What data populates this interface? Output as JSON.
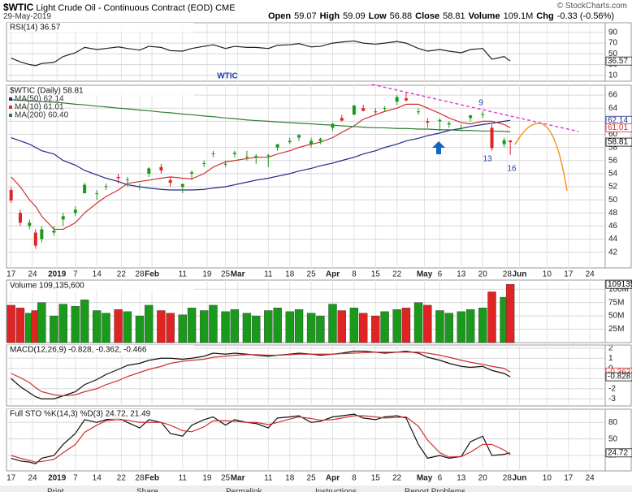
{
  "header": {
    "symbol": "$WTIC",
    "name": "Light Crude Oil - Continuous Contract (EOD) CME",
    "date": "29-May-2019",
    "copyright": "© StockCharts.com",
    "quote": [
      {
        "label": "Open",
        "value": 59.07
      },
      {
        "label": "High",
        "value": 59.09
      },
      {
        "label": "Low",
        "value": 56.88
      },
      {
        "label": "Close",
        "value": 58.81
      },
      {
        "label": "Volume",
        "value": "109.1M"
      },
      {
        "label": "Chg",
        "value": "-0.33 (-0.56%)"
      }
    ]
  },
  "footer": [
    "Print",
    "Share",
    "Permalink",
    "Instructions",
    "Report Problems"
  ],
  "chart_data": [
    {
      "type": "candlestick",
      "title": "$WTIC (Daily) 58.81",
      "x": [
        0,
        3,
        6,
        8,
        10,
        14,
        17,
        21,
        24,
        28,
        31,
        35,
        38,
        42,
        45,
        49,
        52,
        56,
        59,
        63,
        66,
        70,
        73,
        77,
        80,
        84,
        87,
        91,
        94,
        98,
        101,
        105,
        108,
        112,
        115,
        119,
        122,
        126,
        129,
        133,
        136,
        140,
        143,
        147,
        150,
        154,
        157,
        161,
        163
      ],
      "open": [
        51.5,
        48,
        46,
        45,
        44,
        45,
        47,
        48,
        51,
        51,
        52,
        53.5,
        53,
        52,
        54,
        55,
        53,
        52,
        54,
        55.5,
        57,
        55.5,
        57,
        56.5,
        56.5,
        56.8,
        58,
        58.8,
        59.5,
        58.5,
        59,
        61,
        62.5,
        63,
        64,
        63.5,
        64,
        65,
        65.5,
        63.5,
        62,
        62,
        61.5,
        61,
        62.5,
        63,
        61,
        58.5,
        59.07
      ],
      "high": [
        52,
        48.5,
        47,
        45.5,
        46,
        46,
        48,
        49,
        52.6,
        51.5,
        52.5,
        54,
        53.5,
        52.5,
        55,
        55.5,
        53.5,
        52.5,
        54.5,
        56,
        57.5,
        56,
        57.5,
        57.5,
        57,
        57,
        58.5,
        59.5,
        60,
        59.5,
        59.5,
        61.8,
        63,
        64.5,
        64.5,
        64,
        64.3,
        66,
        66.5,
        64,
        62.5,
        62.5,
        62,
        61.5,
        63,
        63.5,
        61.5,
        59.5,
        59.09
      ],
      "low": [
        49.5,
        46,
        45.5,
        42.5,
        43.5,
        44.5,
        46,
        47.5,
        51,
        50,
        51.5,
        52.5,
        52,
        51.5,
        53.5,
        54,
        52,
        51,
        53,
        55,
        56.5,
        55,
        56.5,
        56,
        55.5,
        55,
        57.5,
        58.5,
        59,
        58,
        58.5,
        60.5,
        62,
        63,
        63.5,
        63,
        63.5,
        64.5,
        65,
        63,
        61,
        60.5,
        61,
        60.5,
        62,
        62.5,
        57.5,
        58,
        56.88
      ],
      "close": [
        49.9,
        46.5,
        46.5,
        43,
        45.5,
        45.3,
        47.5,
        48.5,
        52.3,
        51,
        52.1,
        53.3,
        53.1,
        52,
        54.8,
        54.5,
        52.6,
        52.4,
        54.2,
        55.6,
        57.1,
        55.5,
        57.2,
        56.6,
        56.7,
        56.8,
        58.5,
        59,
        59.9,
        59,
        59.3,
        61.6,
        62.1,
        64.4,
        63.6,
        63.4,
        64,
        65.7,
        65.2,
        63.5,
        61.8,
        62.2,
        61.7,
        61,
        62.9,
        63.1,
        57.9,
        59.1,
        58.81
      ],
      "up_color": "#1a9a1a",
      "down_color": "#e02424",
      "series": [
        {
          "name": "MA(50) 62.14",
          "color": "#1f2a8a",
          "values": [
            59.5,
            59,
            58.5,
            58,
            57.5,
            57,
            56,
            55.3,
            54.5,
            53.8,
            53.3,
            52.8,
            52.3,
            52,
            51.8,
            51.6,
            51.5,
            51.5,
            51.5,
            51.6,
            51.8,
            52,
            52.3,
            52.7,
            53,
            53.3,
            53.6,
            54,
            54.4,
            54.8,
            55.2,
            55.6,
            56,
            56.5,
            57,
            57.5,
            58,
            58.5,
            59,
            59.4,
            59.8,
            60.2,
            60.6,
            60.9,
            61.2,
            61.5,
            61.7,
            62,
            62.14
          ]
        },
        {
          "name": "MA(10) 61.01",
          "color": "#d03030",
          "values": [
            53.5,
            52,
            50,
            49,
            47.5,
            45.5,
            45.5,
            46.5,
            48,
            49.5,
            50.5,
            51.5,
            52.5,
            52.8,
            53,
            53.3,
            53.5,
            53.3,
            53.2,
            54,
            55,
            55.8,
            56,
            56.3,
            56.5,
            56.5,
            57,
            57.5,
            58,
            58.5,
            58.8,
            59.5,
            60.3,
            61.3,
            62.3,
            63,
            63.5,
            64,
            64.6,
            64.6,
            64,
            63.2,
            62.5,
            61.8,
            61.6,
            62,
            62,
            61.5,
            61.01
          ]
        },
        {
          "name": "MA(200) 60.40",
          "color": "#2e7d32",
          "values": [
            65.3,
            65.2,
            65.1,
            65.05,
            65,
            64.9,
            64.8,
            64.6,
            64.5,
            64.3,
            64.2,
            64,
            63.9,
            63.7,
            63.6,
            63.4,
            63.3,
            63.1,
            63,
            62.8,
            62.7,
            62.5,
            62.4,
            62.2,
            62.1,
            62,
            61.9,
            61.8,
            61.7,
            61.6,
            61.5,
            61.4,
            61.3,
            61.2,
            61.1,
            61,
            61,
            60.9,
            60.9,
            60.8,
            60.8,
            60.7,
            60.7,
            60.6,
            60.6,
            60.5,
            60.5,
            60.45,
            60.4
          ]
        }
      ],
      "xlim": [
        -1.5,
        194
      ],
      "xticks": [
        {
          "value": 0,
          "label": "17"
        },
        {
          "value": 7,
          "label": "24"
        },
        {
          "value": 15,
          "label": "2019"
        },
        {
          "value": 21,
          "label": "7"
        },
        {
          "value": 28,
          "label": "14"
        },
        {
          "value": 36,
          "label": "22"
        },
        {
          "value": 42,
          "label": "28"
        },
        {
          "value": 46,
          "label": "Feb"
        },
        {
          "value": 56,
          "label": "11"
        },
        {
          "value": 64,
          "label": "19"
        },
        {
          "value": 70,
          "label": "25"
        },
        {
          "value": 74,
          "label": "Mar"
        },
        {
          "value": 84,
          "label": "11"
        },
        {
          "value": 91,
          "label": "18"
        },
        {
          "value": 98,
          "label": "25"
        },
        {
          "value": 105,
          "label": "Apr"
        },
        {
          "value": 112,
          "label": "8"
        },
        {
          "value": 119,
          "label": "15"
        },
        {
          "value": 126,
          "label": "22"
        },
        {
          "value": 135,
          "label": "May"
        },
        {
          "value": 140,
          "label": "6"
        },
        {
          "value": 147,
          "label": "13"
        },
        {
          "value": 154,
          "label": "20"
        },
        {
          "value": 162,
          "label": "28"
        },
        {
          "value": 166,
          "label": "Jun"
        },
        {
          "value": 175,
          "label": "10"
        },
        {
          "value": 182,
          "label": "17"
        },
        {
          "value": 189,
          "label": "24"
        }
      ],
      "ylim": [
        39.6,
        67.5
      ],
      "yticks": [
        42,
        44,
        46,
        48,
        50,
        52,
        54,
        56,
        58,
        60,
        62,
        64,
        66
      ],
      "grid": true,
      "annotations": [
        "WTIC",
        "9",
        "13",
        "16"
      ]
    },
    {
      "type": "line",
      "title": "RSI(14) 36.57",
      "color": "#222222",
      "values": [
        42,
        35,
        30,
        28,
        32,
        34,
        45,
        52,
        62,
        58,
        60,
        63,
        60,
        57,
        64,
        62,
        56,
        55,
        60,
        64,
        67,
        60,
        64,
        62,
        62,
        60,
        66,
        67,
        69,
        63,
        64,
        70,
        72,
        74,
        70,
        68,
        70,
        73,
        70,
        60,
        55,
        58,
        55,
        52,
        58,
        60,
        40,
        45,
        36.57
      ],
      "ylim": [
        -1,
        108
      ],
      "yticks": [
        10,
        30,
        50,
        70,
        90
      ],
      "grid": true
    },
    {
      "type": "bar",
      "title": "Volume 109,135,600",
      "values": [
        70000000,
        65000000,
        55000000,
        60000000,
        75000000,
        50000000,
        72000000,
        68000000,
        80000000,
        60000000,
        55000000,
        62000000,
        58000000,
        50000000,
        70000000,
        60000000,
        55000000,
        52000000,
        65000000,
        60000000,
        70000000,
        58000000,
        62000000,
        55000000,
        50000000,
        60000000,
        65000000,
        58000000,
        62000000,
        55000000,
        50000000,
        72000000,
        60000000,
        65000000,
        55000000,
        50000000,
        58000000,
        62000000,
        65000000,
        75000000,
        70000000,
        60000000,
        55000000,
        58000000,
        62000000,
        65000000,
        95000000,
        85000000,
        109135600
      ],
      "ylim": [
        0,
        117000000
      ],
      "yticks": [
        {
          "value": 25000000,
          "label": "25M"
        },
        {
          "value": 50000000,
          "label": "50M"
        },
        {
          "value": 75000000,
          "label": "75M"
        },
        {
          "value": 100000000,
          "label": "100M"
        }
      ],
      "grid": true
    },
    {
      "type": "line",
      "title": "MACD(12,26,9) -0.828, -0.362, -0.466",
      "series": [
        {
          "color": "#111111",
          "values": [
            -1,
            -1.8,
            -2.4,
            -2.8,
            -3,
            -3,
            -2.7,
            -2.3,
            -1.6,
            -1.1,
            -0.6,
            -0.1,
            0.3,
            0.5,
            0.8,
            1,
            1,
            0.9,
            1,
            1.2,
            1.5,
            1.4,
            1.5,
            1.4,
            1.3,
            1.2,
            1.3,
            1.4,
            1.5,
            1.4,
            1.3,
            1.4,
            1.5,
            1.7,
            1.7,
            1.6,
            1.5,
            1.6,
            1.7,
            1.5,
            1.1,
            0.8,
            0.5,
            0.2,
            0.1,
            0.2,
            -0.2,
            -0.5,
            -0.828
          ]
        },
        {
          "color": "#d03030",
          "values": [
            -0.5,
            -0.9,
            -1.4,
            -1.9,
            -2.3,
            -2.6,
            -2.7,
            -2.6,
            -2.3,
            -2,
            -1.6,
            -1.2,
            -0.8,
            -0.4,
            -0.1,
            0.2,
            0.5,
            0.7,
            0.8,
            0.9,
            1.1,
            1.2,
            1.3,
            1.35,
            1.35,
            1.3,
            1.3,
            1.35,
            1.4,
            1.4,
            1.4,
            1.4,
            1.45,
            1.5,
            1.55,
            1.6,
            1.6,
            1.6,
            1.6,
            1.6,
            1.5,
            1.3,
            1.1,
            0.8,
            0.6,
            0.4,
            0.2,
            0,
            -0.362
          ]
        }
      ],
      "ylim": [
        -3.7,
        2.3
      ],
      "yticks": [
        -3,
        -2,
        -1,
        0,
        1,
        2
      ],
      "grid": true
    },
    {
      "type": "line",
      "title": "Full STO %K(14,3) %D(3) 24.72, 21.49",
      "series": [
        {
          "color": "#111111",
          "values": [
            15,
            10,
            8,
            5,
            15,
            20,
            40,
            60,
            85,
            80,
            85,
            88,
            80,
            70,
            85,
            80,
            60,
            55,
            75,
            85,
            90,
            75,
            85,
            80,
            78,
            70,
            88,
            90,
            92,
            80,
            82,
            90,
            92,
            95,
            88,
            85,
            90,
            92,
            88,
            40,
            15,
            20,
            15,
            18,
            45,
            55,
            20,
            22,
            24.72
          ]
        },
        {
          "color": "#d03030",
          "values": [
            20,
            15,
            11,
            8,
            9,
            13,
            25,
            40,
            62,
            75,
            83,
            85,
            84,
            80,
            80,
            80,
            75,
            65,
            63,
            72,
            83,
            83,
            82,
            80,
            80,
            76,
            80,
            86,
            90,
            87,
            84,
            85,
            88,
            92,
            92,
            90,
            88,
            89,
            90,
            73,
            48,
            25,
            17,
            18,
            26,
            40,
            40,
            30,
            21.49
          ]
        }
      ],
      "ylim": [
        -8,
        104
      ],
      "yticks": [
        20,
        50,
        80
      ],
      "grid": true
    }
  ]
}
